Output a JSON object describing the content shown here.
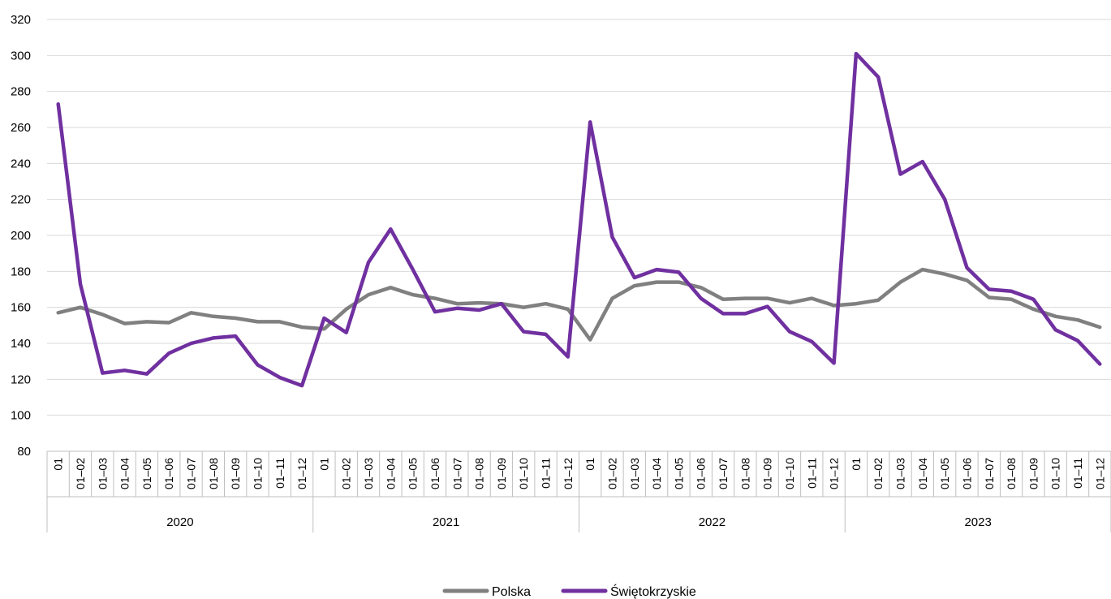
{
  "chart_data": {
    "type": "line",
    "title": "",
    "xlabel": "",
    "ylabel": "",
    "ylim": [
      80,
      320
    ],
    "yticks": [
      80,
      100,
      120,
      140,
      160,
      180,
      200,
      220,
      240,
      260,
      280,
      300,
      320
    ],
    "grid": "horizontal",
    "legend_position": "bottom",
    "groups": [
      {
        "label": "2020",
        "periods": [
          "01",
          "01–02",
          "01–03",
          "01–04",
          "01–05",
          "01–06",
          "01–07",
          "01–08",
          "01–09",
          "01–10",
          "01–11",
          "01–12"
        ]
      },
      {
        "label": "2021",
        "periods": [
          "01",
          "01–02",
          "01–03",
          "01–04",
          "01–05",
          "01–06",
          "01–07",
          "01–08",
          "01–09",
          "01–10",
          "01–11",
          "01–12"
        ]
      },
      {
        "label": "2022",
        "periods": [
          "01",
          "01–02",
          "01–03",
          "01–04",
          "01–05",
          "01–06",
          "01–07",
          "01–08",
          "01–09",
          "01–10",
          "01–11",
          "01–12"
        ]
      },
      {
        "label": "2023",
        "periods": [
          "01",
          "01–02",
          "01–03",
          "01–04",
          "01–05",
          "01–06",
          "01–07",
          "01–08",
          "01–09",
          "01–10",
          "01–11",
          "01–12"
        ]
      }
    ],
    "series": [
      {
        "name": "Polska",
        "color": "#808080",
        "values": [
          157,
          160,
          156,
          151,
          152,
          151.5,
          157,
          155,
          154,
          152,
          152,
          149,
          148,
          159,
          167,
          171,
          167,
          165,
          162,
          162.5,
          162,
          160,
          162,
          159,
          142,
          165,
          172,
          174,
          174,
          171,
          164.5,
          165,
          165,
          162.5,
          165,
          161,
          162,
          164,
          174,
          181,
          178.5,
          175,
          165.5,
          164.5,
          159,
          155,
          153,
          149
        ]
      },
      {
        "name": "Świętokrzyskie",
        "color": "#7030A0",
        "values": [
          273,
          173,
          123.5,
          125,
          123,
          134.5,
          140,
          143,
          144,
          128,
          121,
          116.5,
          154,
          146,
          185,
          203.5,
          181,
          157.5,
          159.5,
          158.5,
          162,
          146.5,
          145,
          132.5,
          263,
          199,
          176.5,
          181,
          179.5,
          165,
          156.5,
          156.5,
          160.5,
          146.5,
          141,
          129,
          301,
          288,
          234,
          241,
          220,
          182,
          170,
          169,
          164.5,
          147.5,
          141.5,
          128.5
        ]
      }
    ]
  }
}
